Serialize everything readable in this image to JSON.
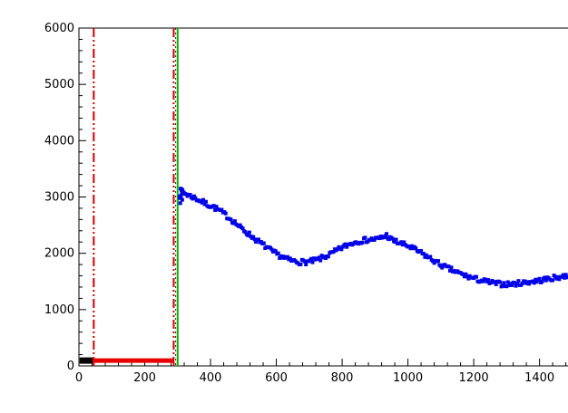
{
  "chart_data": {
    "type": "scatter",
    "title": "",
    "xlabel": "",
    "ylabel": "",
    "xlim": [
      0,
      1550
    ],
    "ylim": [
      0,
      6000
    ],
    "x_major_ticks": [
      0,
      200,
      400,
      600,
      800,
      1000,
      1200,
      1400
    ],
    "x_minor_step": 40,
    "y_major_ticks": [
      0,
      1000,
      2000,
      3000,
      4000,
      5000,
      6000
    ],
    "y_minor_step": 200,
    "grid": false,
    "legend": null,
    "background": "#ffffff",
    "frame_color": "#000000",
    "series": [
      {
        "name": "baseline-scan-points",
        "type": "scatter",
        "marker": "square",
        "marker_size": 4,
        "color": "#0202e8",
        "noise": 45,
        "noise_seed": 7,
        "sample_step": 4,
        "trend": [
          [
            306,
            3050
          ],
          [
            315,
            3090
          ],
          [
            330,
            3040
          ],
          [
            350,
            2990
          ],
          [
            370,
            2930
          ],
          [
            390,
            2870
          ],
          [
            410,
            2820
          ],
          [
            430,
            2750
          ],
          [
            450,
            2660
          ],
          [
            470,
            2570
          ],
          [
            490,
            2460
          ],
          [
            510,
            2370
          ],
          [
            530,
            2280
          ],
          [
            550,
            2190
          ],
          [
            570,
            2110
          ],
          [
            590,
            2020
          ],
          [
            610,
            1960
          ],
          [
            630,
            1900
          ],
          [
            650,
            1865
          ],
          [
            670,
            1845
          ],
          [
            690,
            1845
          ],
          [
            710,
            1860
          ],
          [
            730,
            1895
          ],
          [
            750,
            1945
          ],
          [
            770,
            2000
          ],
          [
            790,
            2070
          ],
          [
            810,
            2130
          ],
          [
            830,
            2180
          ],
          [
            850,
            2215
          ],
          [
            870,
            2235
          ],
          [
            890,
            2245
          ],
          [
            910,
            2255
          ],
          [
            925,
            2290
          ],
          [
            935,
            2320
          ],
          [
            945,
            2260
          ],
          [
            960,
            2215
          ],
          [
            980,
            2170
          ],
          [
            1000,
            2130
          ],
          [
            1020,
            2070
          ],
          [
            1040,
            2005
          ],
          [
            1060,
            1935
          ],
          [
            1080,
            1865
          ],
          [
            1100,
            1795
          ],
          [
            1120,
            1735
          ],
          [
            1140,
            1685
          ],
          [
            1160,
            1635
          ],
          [
            1180,
            1590
          ],
          [
            1200,
            1555
          ],
          [
            1220,
            1520
          ],
          [
            1240,
            1495
          ],
          [
            1260,
            1470
          ],
          [
            1280,
            1455
          ],
          [
            1300,
            1450
          ],
          [
            1320,
            1455
          ],
          [
            1340,
            1470
          ],
          [
            1360,
            1488
          ],
          [
            1380,
            1500
          ],
          [
            1400,
            1518
          ],
          [
            1420,
            1538
          ],
          [
            1440,
            1558
          ],
          [
            1460,
            1578
          ],
          [
            1480,
            1598
          ],
          [
            1500,
            1618
          ],
          [
            1520,
            1645
          ]
        ],
        "extra_points": [
          [
            307,
            2980
          ],
          [
            309,
            3150
          ],
          [
            311,
            3140
          ],
          [
            313,
            3060
          ],
          [
            308,
            2890
          ],
          [
            312,
            3120
          ],
          [
            310,
            3000
          ],
          [
            314,
            2950
          ]
        ]
      }
    ],
    "annotations": {
      "vlines": [
        {
          "name": "cut-low-red-line",
          "x": 45,
          "color": "#d40000",
          "style": "dashdot",
          "width": 2
        },
        {
          "name": "cut-high-red-line",
          "x": 288,
          "color": "#d40000",
          "style": "dashdot",
          "width": 2
        },
        {
          "name": "threshold-dotted-line",
          "x": 294,
          "color": "#222222",
          "style": "dotted",
          "width": 1
        },
        {
          "name": "signal-start-green-line",
          "x": 300,
          "color": "#00b400",
          "style": "solid",
          "width": 2
        }
      ],
      "hsegments": [
        {
          "name": "pedestal-black-segment",
          "x1": 2,
          "x2": 42,
          "y": 95,
          "color": "#000000",
          "width": 7
        },
        {
          "name": "pedestal-red-segment",
          "x1": 42,
          "x2": 290,
          "y": 95,
          "color": "#e80000",
          "width": 5
        }
      ]
    }
  }
}
